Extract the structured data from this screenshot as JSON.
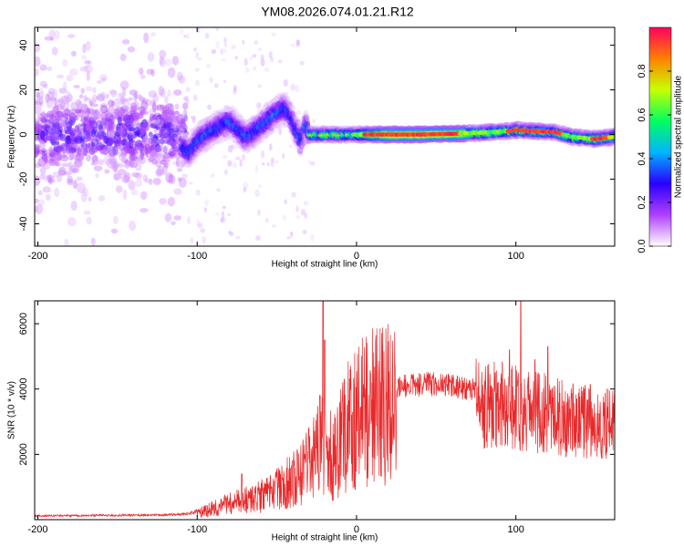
{
  "title": "YM08.2026.074.01.21.R12",
  "chart_data": [
    {
      "type": "heatmap",
      "name": "spectrogram",
      "xlabel": "Height of straight line (km)",
      "ylabel": "Frequency (Hz)",
      "xlim": [
        -202,
        162
      ],
      "ylim": [
        -50,
        48
      ],
      "xticks": [
        -200,
        -100,
        0,
        100
      ],
      "yticks": [
        -40,
        -20,
        0,
        20,
        40
      ],
      "xtick_labels": [
        "-200",
        "-100",
        "0",
        "100"
      ],
      "ytick_labels": [
        "-40",
        "-20",
        "0",
        "20",
        "40"
      ],
      "ridge": [
        {
          "x": -110,
          "y": -5
        },
        {
          "x": -105,
          "y": -8
        },
        {
          "x": -100,
          "y": -3
        },
        {
          "x": -95,
          "y": 0
        },
        {
          "x": -90,
          "y": 2
        },
        {
          "x": -85,
          "y": 4
        },
        {
          "x": -80,
          "y": 6
        },
        {
          "x": -75,
          "y": 3
        },
        {
          "x": -70,
          "y": -1
        },
        {
          "x": -65,
          "y": 1
        },
        {
          "x": -60,
          "y": 4
        },
        {
          "x": -55,
          "y": 7
        },
        {
          "x": -50,
          "y": 10
        },
        {
          "x": -45,
          "y": 12
        },
        {
          "x": -42,
          "y": 9
        },
        {
          "x": -38,
          "y": 2
        },
        {
          "x": -35,
          "y": -3
        },
        {
          "x": -32,
          "y": 5
        },
        {
          "x": -30,
          "y": 0
        },
        {
          "x": -20,
          "y": 0
        },
        {
          "x": 0,
          "y": 0
        },
        {
          "x": 40,
          "y": 0
        },
        {
          "x": 70,
          "y": 0.5
        },
        {
          "x": 95,
          "y": 1.5
        },
        {
          "x": 100,
          "y": 2
        },
        {
          "x": 125,
          "y": 1
        },
        {
          "x": 135,
          "y": -1
        },
        {
          "x": 150,
          "y": -2
        },
        {
          "x": 162,
          "y": -1
        }
      ],
      "colorbar": {
        "label": "Normalized spectral amplitude",
        "range": [
          0.0,
          1.0
        ],
        "ticks": [
          0.0,
          0.2,
          0.4,
          0.6,
          0.8
        ],
        "tick_labels": [
          "0.0",
          "0.2",
          "0.4",
          "0.6",
          "0.8"
        ],
        "colors": [
          "#ffffff",
          "#b040ff",
          "#2a00ff",
          "#00b4ff",
          "#00ff60",
          "#c8ff00",
          "#ff8000",
          "#ff0060"
        ]
      }
    },
    {
      "type": "line",
      "name": "snr",
      "xlabel": "Height of straight line (km)",
      "ylabel": "SNR (10 * v/v)",
      "xlim": [
        -202,
        162
      ],
      "ylim": [
        0,
        6700
      ],
      "xticks": [
        -200,
        -100,
        0,
        100
      ],
      "yticks": [
        2000,
        4000,
        6000
      ],
      "xtick_labels": [
        "-200",
        "-100",
        "0",
        "100"
      ],
      "ytick_labels": [
        "2000",
        "4000",
        "6000"
      ],
      "color": "#e8282a",
      "envelope": [
        {
          "x": -202,
          "y": 100
        },
        {
          "x": -120,
          "y": 120
        },
        {
          "x": -105,
          "y": 150
        },
        {
          "x": -95,
          "y": 300
        },
        {
          "x": -85,
          "y": 450
        },
        {
          "x": -75,
          "y": 600
        },
        {
          "x": -65,
          "y": 700
        },
        {
          "x": -55,
          "y": 900
        },
        {
          "x": -45,
          "y": 1200
        },
        {
          "x": -35,
          "y": 1500
        },
        {
          "x": -28,
          "y": 2000
        },
        {
          "x": -24,
          "y": 2500
        },
        {
          "x": -20,
          "y": 2400
        },
        {
          "x": -15,
          "y": 2200
        },
        {
          "x": -10,
          "y": 2600
        },
        {
          "x": -5,
          "y": 3200
        },
        {
          "x": 5,
          "y": 3700
        },
        {
          "x": 15,
          "y": 3900
        },
        {
          "x": 25,
          "y": 4050
        },
        {
          "x": 45,
          "y": 4150
        },
        {
          "x": 60,
          "y": 4100
        },
        {
          "x": 75,
          "y": 3950
        },
        {
          "x": 90,
          "y": 3950
        },
        {
          "x": 105,
          "y": 3800
        },
        {
          "x": 120,
          "y": 3600
        },
        {
          "x": 135,
          "y": 3450
        },
        {
          "x": 150,
          "y": 3300
        },
        {
          "x": 162,
          "y": 3200
        }
      ],
      "spikes": [
        {
          "x": -21,
          "y": 6700
        },
        {
          "x": -20,
          "y": 5500
        },
        {
          "x": -23,
          "y": 3800
        },
        {
          "x": -72,
          "y": 1400
        },
        {
          "x": 103,
          "y": 6700
        },
        {
          "x": 96,
          "y": 5200
        },
        {
          "x": 120,
          "y": 5300
        },
        {
          "x": 112,
          "y": 4900
        }
      ]
    }
  ]
}
